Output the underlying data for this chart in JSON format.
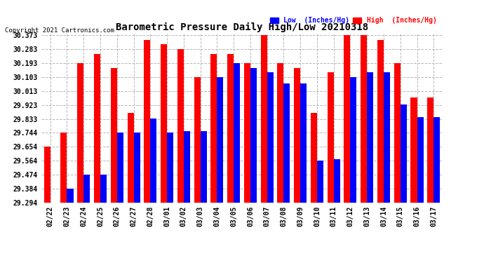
{
  "title": "Barometric Pressure Daily High/Low 20210318",
  "copyright": "Copyright 2021 Cartronics.com",
  "legend_low": "Low  (Inches/Hg)",
  "legend_high": "High  (Inches/Hg)",
  "dates": [
    "02/22",
    "02/23",
    "02/24",
    "02/25",
    "02/26",
    "02/27",
    "02/28",
    "03/01",
    "03/02",
    "03/03",
    "03/04",
    "03/05",
    "03/06",
    "03/07",
    "03/08",
    "03/09",
    "03/10",
    "03/11",
    "03/12",
    "03/13",
    "03/14",
    "03/15",
    "03/16",
    "03/17"
  ],
  "high_values": [
    29.654,
    29.744,
    30.193,
    30.253,
    30.163,
    29.873,
    30.343,
    30.313,
    30.283,
    30.103,
    30.253,
    30.253,
    30.193,
    30.373,
    30.193,
    30.163,
    29.873,
    30.133,
    30.373,
    30.373,
    30.343,
    30.193,
    29.973,
    29.973
  ],
  "low_values": [
    29.294,
    29.384,
    29.474,
    29.474,
    29.744,
    29.744,
    29.834,
    29.744,
    29.754,
    29.754,
    30.103,
    30.193,
    30.163,
    30.133,
    30.063,
    30.063,
    29.564,
    29.574,
    30.103,
    30.133,
    30.133,
    29.924,
    29.844,
    29.844
  ],
  "ylim_min": 29.294,
  "ylim_max": 30.373,
  "yticks": [
    29.294,
    29.384,
    29.474,
    29.564,
    29.654,
    29.744,
    29.833,
    29.923,
    30.013,
    30.103,
    30.193,
    30.283,
    30.373
  ],
  "ytick_labels": [
    "29.294",
    "29.384",
    "29.474",
    "29.564",
    "29.654",
    "29.744",
    "29.833",
    "29.923",
    "30.013",
    "30.103",
    "30.193",
    "30.283",
    "30.373"
  ],
  "bg_color": "#ffffff",
  "bar_color_high": "#ff0000",
  "bar_color_low": "#0000ff",
  "grid_color": "#b0b0b0",
  "title_color": "#000000",
  "copyright_color": "#000000",
  "legend_low_color": "#0000ff",
  "legend_high_color": "#ff0000",
  "title_fontsize": 10,
  "tick_fontsize": 7,
  "bar_width": 0.38
}
